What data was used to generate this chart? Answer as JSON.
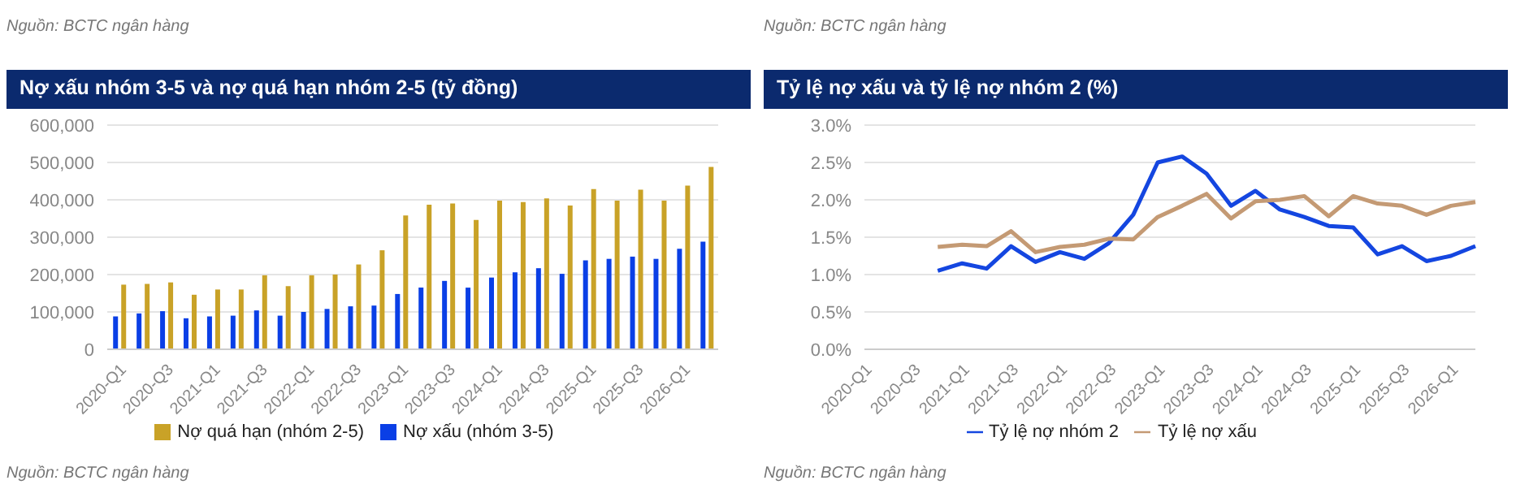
{
  "chart_data": [
    {
      "type": "bar",
      "title": "Nợ xấu nhóm 3-5 và nợ quá hạn nhóm 2-5 (tỷ đồng)",
      "annotations": [
        "Nguồn: BCTC ngân hàng",
        "Nguồn: BCTC ngân hàng"
      ],
      "categories": [
        "2020-Q1",
        null,
        "2020-Q3",
        null,
        "2021-Q1",
        null,
        "2021-Q3",
        null,
        "2022-Q1",
        null,
        "2022-Q3",
        null,
        "2023-Q1",
        null,
        "2023-Q3",
        null,
        "2024-Q1",
        null,
        "2024-Q3",
        null,
        "2025-Q1",
        null,
        "2025-Q3",
        null,
        "2026-Q1",
        null
      ],
      "series": [
        {
          "name": "Nợ xấu (nhóm 3-5)",
          "color": "#0a3fe6",
          "values": [
            88000,
            96000,
            102000,
            83000,
            88000,
            90000,
            104000,
            90000,
            100000,
            108000,
            115000,
            117000,
            148000,
            165000,
            183000,
            165000,
            192000,
            206000,
            217000,
            202000,
            238000,
            242000,
            248000,
            242000,
            269000,
            288000
          ]
        },
        {
          "name": "Nợ quá hạn (nhóm 2-5)",
          "color": "#c9a227",
          "values": [
            173000,
            175000,
            179000,
            146000,
            160000,
            160000,
            198000,
            169000,
            198000,
            200000,
            227000,
            265000,
            358000,
            387000,
            390000,
            346000,
            398000,
            394000,
            404000,
            385000,
            429000,
            398000,
            427000,
            398000,
            438000,
            488000
          ]
        }
      ],
      "ylim": [
        0,
        600000
      ],
      "yticks": [
        {
          "value": 0,
          "label": "0"
        },
        {
          "value": 100000,
          "label": "100,000"
        },
        {
          "value": 200000,
          "label": "200,000"
        },
        {
          "value": 300000,
          "label": "300,000"
        },
        {
          "value": 400000,
          "label": "400,000"
        },
        {
          "value": 500000,
          "label": "500,000"
        },
        {
          "value": 600000,
          "label": "600,000"
        }
      ],
      "grid": "y",
      "legend": "bottom"
    },
    {
      "type": "line",
      "title": "Tỷ lệ nợ xấu và tỷ lệ nợ nhóm 2 (%)",
      "annotations": [
        "Nguồn: BCTC ngân hàng",
        "Nguồn: BCTC ngân hàng"
      ],
      "categories": [
        "2020-Q1",
        null,
        "2020-Q3",
        null,
        "2021-Q1",
        null,
        "2021-Q3",
        null,
        "2022-Q1",
        null,
        "2022-Q3",
        null,
        "2023-Q1",
        null,
        "2023-Q3",
        null,
        "2024-Q1",
        null,
        "2024-Q3",
        null,
        "2025-Q1",
        null,
        "2025-Q3",
        null,
        "2026-Q1",
        null
      ],
      "series": [
        {
          "name": "Tỷ lệ nợ nhóm 2",
          "color": "#1446e0",
          "values": [
            null,
            null,
            null,
            1.05,
            1.15,
            1.08,
            1.38,
            1.17,
            1.3,
            1.21,
            1.42,
            1.8,
            2.5,
            2.58,
            2.35,
            1.92,
            2.12,
            1.87,
            1.77,
            1.65,
            1.63,
            1.27,
            1.38,
            1.18,
            1.25,
            1.38
          ]
        },
        {
          "name": "Tỷ lệ nợ xấu",
          "color": "#c49a74",
          "values": [
            null,
            null,
            null,
            1.37,
            1.4,
            1.38,
            1.58,
            1.3,
            1.37,
            1.4,
            1.48,
            1.47,
            1.77,
            1.92,
            2.08,
            1.75,
            1.98,
            2.0,
            2.05,
            1.78,
            2.05,
            1.95,
            1.92,
            1.8,
            1.92,
            1.97
          ]
        }
      ],
      "ylim": [
        0,
        3
      ],
      "yticks": [
        {
          "value": 0,
          "label": "0.0%"
        },
        {
          "value": 0.5,
          "label": "0.5%"
        },
        {
          "value": 1,
          "label": "1.0%"
        },
        {
          "value": 1.5,
          "label": "1.5%"
        },
        {
          "value": 2,
          "label": "2.0%"
        },
        {
          "value": 2.5,
          "label": "2.5%"
        },
        {
          "value": 3,
          "label": "3.0%"
        }
      ],
      "grid": "y",
      "legend": "bottom",
      "marker": "none",
      "line_style": "solid"
    }
  ]
}
